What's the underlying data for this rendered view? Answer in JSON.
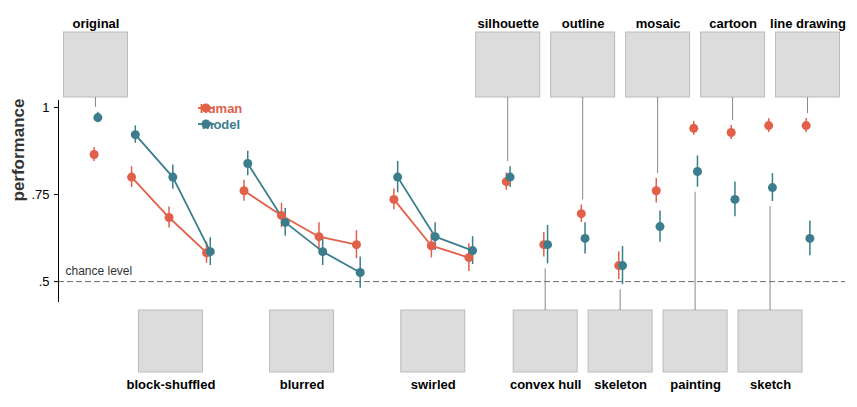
{
  "chart_data": {
    "type": "line",
    "y_label": "performance",
    "ylim": [
      0.44,
      1.02
    ],
    "yticks": [
      {
        "value": 0.5,
        "label": ".5"
      },
      {
        "value": 0.75,
        "label": ".75"
      },
      {
        "value": 1,
        "label": "1"
      }
    ],
    "reference_line": {
      "value": 0.5,
      "label": "chance level"
    },
    "legend": "top-left",
    "series": [
      {
        "name": "human",
        "color": "#e2604a",
        "marker": "circle"
      },
      {
        "name": "model",
        "color": "#3b7d8d",
        "marker": "circle"
      }
    ],
    "conditions": [
      {
        "label": "original",
        "human": [
          0.865
        ],
        "human_error": [
          0.02
        ],
        "model": [
          0.971
        ],
        "model_error": [
          0.015
        ]
      },
      {
        "label": "block-shuffled",
        "human": [
          0.8,
          0.684,
          0.583
        ],
        "human_error": [
          0.03,
          0.03,
          0.03
        ],
        "model": [
          0.922,
          0.8,
          0.586
        ],
        "model_error": [
          0.025,
          0.035,
          0.04
        ]
      },
      {
        "label": "blurred",
        "human": [
          0.761,
          0.69,
          0.629,
          0.606
        ],
        "human_error": [
          0.03,
          0.035,
          0.04,
          0.04
        ],
        "model": [
          0.839,
          0.67,
          0.586,
          0.526
        ],
        "model_error": [
          0.035,
          0.04,
          0.04,
          0.045
        ]
      },
      {
        "label": "swirled",
        "human": [
          0.736,
          0.603,
          0.569
        ],
        "human_error": [
          0.03,
          0.035,
          0.04
        ],
        "model": [
          0.8,
          0.629,
          0.589
        ],
        "model_error": [
          0.045,
          0.04,
          0.04
        ]
      },
      {
        "label": "silhouette",
        "human": [
          0.787
        ],
        "human_error": [
          0.025
        ],
        "model": [
          0.8
        ],
        "model_error": [
          0.03
        ]
      },
      {
        "label": "convex hull",
        "human": [
          0.606
        ],
        "human_error": [
          0.035
        ],
        "model": [
          0.606
        ],
        "model_error": [
          0.055
        ]
      },
      {
        "label": "outline",
        "human": [
          0.695
        ],
        "human_error": [
          0.025
        ],
        "model": [
          0.624
        ],
        "model_error": [
          0.045
        ]
      },
      {
        "label": "skeleton",
        "human": [
          0.546
        ],
        "human_error": [
          0.04
        ],
        "model": [
          0.546
        ],
        "model_error": [
          0.055
        ]
      },
      {
        "label": "mosaic",
        "human": [
          0.761
        ],
        "human_error": [
          0.035
        ],
        "model": [
          0.658
        ],
        "model_error": [
          0.045
        ]
      },
      {
        "label": "painting",
        "human": [
          0.94
        ],
        "human_error": [
          0.02
        ],
        "model": [
          0.816
        ],
        "model_error": [
          0.045
        ]
      },
      {
        "label": "cartoon",
        "human": [
          0.928
        ],
        "human_error": [
          0.02
        ],
        "model": [
          0.736
        ],
        "model_error": [
          0.05
        ]
      },
      {
        "label": "sketch",
        "human": [
          0.948
        ],
        "human_error": [
          0.02
        ],
        "model": [
          0.77
        ],
        "model_error": [
          0.04
        ]
      },
      {
        "label": "line drawing",
        "human": [
          0.948
        ],
        "human_error": [
          0.02
        ],
        "model": [
          0.624
        ],
        "model_error": [
          0.05
        ]
      }
    ]
  }
}
